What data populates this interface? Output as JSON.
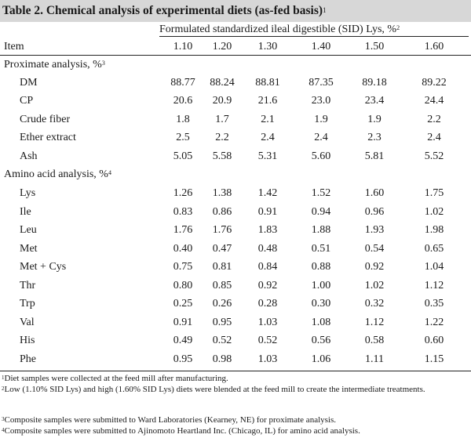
{
  "title": {
    "text": "Table 2. Chemical analysis of experimental diets (as-fed basis)",
    "note": "1"
  },
  "spanner": {
    "text": "Formulated standardized ileal digestible (SID) Lys, %",
    "note": "2"
  },
  "header": {
    "item_label": "Item",
    "levels": [
      "1.10",
      "1.20",
      "1.30",
      "1.40",
      "1.50",
      "1.60"
    ]
  },
  "sections": [
    {
      "label": "Proximate analysis, %",
      "note": "3",
      "rows": [
        {
          "name": "DM",
          "values": [
            "88.77",
            "88.24",
            "88.81",
            "87.35",
            "89.18",
            "89.22"
          ]
        },
        {
          "name": "CP",
          "values": [
            "20.6",
            "20.9",
            "21.6",
            "23.0",
            "23.4",
            "24.4"
          ]
        },
        {
          "name": "Crude fiber",
          "values": [
            "1.8",
            "1.7",
            "2.1",
            "1.9",
            "1.9",
            "2.2"
          ]
        },
        {
          "name": "Ether extract",
          "values": [
            "2.5",
            "2.2",
            "2.4",
            "2.4",
            "2.3",
            "2.4"
          ]
        },
        {
          "name": "Ash",
          "values": [
            "5.05",
            "5.58",
            "5.31",
            "5.60",
            "5.81",
            "5.52"
          ]
        }
      ]
    },
    {
      "label": "Amino acid analysis, %",
      "note": "4",
      "rows": [
        {
          "name": "Lys",
          "values": [
            "1.26",
            "1.38",
            "1.42",
            "1.52",
            "1.60",
            "1.75"
          ]
        },
        {
          "name": "Ile",
          "values": [
            "0.83",
            "0.86",
            "0.91",
            "0.94",
            "0.96",
            "1.02"
          ]
        },
        {
          "name": "Leu",
          "values": [
            "1.76",
            "1.76",
            "1.83",
            "1.88",
            "1.93",
            "1.98"
          ]
        },
        {
          "name": "Met",
          "values": [
            "0.40",
            "0.47",
            "0.48",
            "0.51",
            "0.54",
            "0.65"
          ]
        },
        {
          "name": "Met + Cys",
          "values": [
            "0.75",
            "0.81",
            "0.84",
            "0.88",
            "0.92",
            "1.04"
          ]
        },
        {
          "name": "Thr",
          "values": [
            "0.80",
            "0.85",
            "0.92",
            "1.00",
            "1.02",
            "1.12"
          ]
        },
        {
          "name": "Trp",
          "values": [
            "0.25",
            "0.26",
            "0.28",
            "0.30",
            "0.32",
            "0.35"
          ]
        },
        {
          "name": "Val",
          "values": [
            "0.91",
            "0.95",
            "1.03",
            "1.08",
            "1.12",
            "1.22"
          ]
        },
        {
          "name": "His",
          "values": [
            "0.49",
            "0.52",
            "0.52",
            "0.56",
            "0.58",
            "0.60"
          ]
        },
        {
          "name": "Phe",
          "values": [
            "0.95",
            "0.98",
            "1.03",
            "1.06",
            "1.11",
            "1.15"
          ]
        }
      ]
    }
  ],
  "footnotes": [
    {
      "mark": "1",
      "text": "Diet samples were collected at the feed mill after manufacturing."
    },
    {
      "mark": "2",
      "text": "Low (1.10% SID Lys) and high (1.60% SID Lys) diets were blended at the feed mill to create the intermediate treatments."
    },
    {
      "mark": "3",
      "text": "Composite samples were submitted to Ward Laboratories (Kearney, NE) for proximate analysis."
    },
    {
      "mark": "4",
      "text": "Composite samples were submitted to Ajinomoto Heartland Inc. (Chicago, IL) for amino acid analysis."
    }
  ],
  "colors": {
    "title_band": "#d7d7d7",
    "rule": "#222222",
    "text": "#1a1a1a"
  }
}
